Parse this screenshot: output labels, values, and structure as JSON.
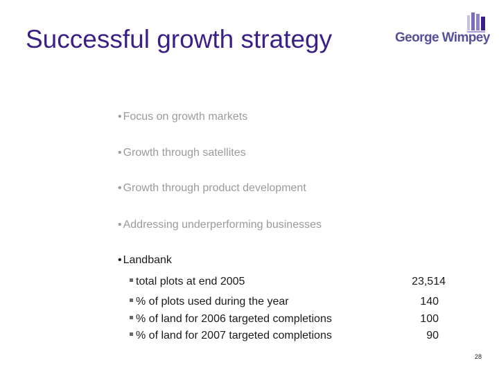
{
  "slide": {
    "title": "Successful growth strategy",
    "logo_text": "George Wimpey",
    "bullets": [
      "Focus on growth markets",
      "Growth through satellites",
      "Growth through product development",
      "Addressing underperforming businesses"
    ],
    "landbank": {
      "label": "Landbank",
      "items": [
        {
          "label": "total plots at end 2005",
          "value": "23,514"
        },
        {
          "label": "% of plots used during the year",
          "value": "140"
        },
        {
          "label": "% of land for 2006 targeted completions",
          "value": "100"
        },
        {
          "label": "% of land for 2007 targeted completions",
          "value": "90"
        }
      ]
    },
    "page_number": "28",
    "colors": {
      "title": "#3b1f87",
      "muted_text": "#9a9a9a",
      "logo_text": "#55509a"
    }
  }
}
